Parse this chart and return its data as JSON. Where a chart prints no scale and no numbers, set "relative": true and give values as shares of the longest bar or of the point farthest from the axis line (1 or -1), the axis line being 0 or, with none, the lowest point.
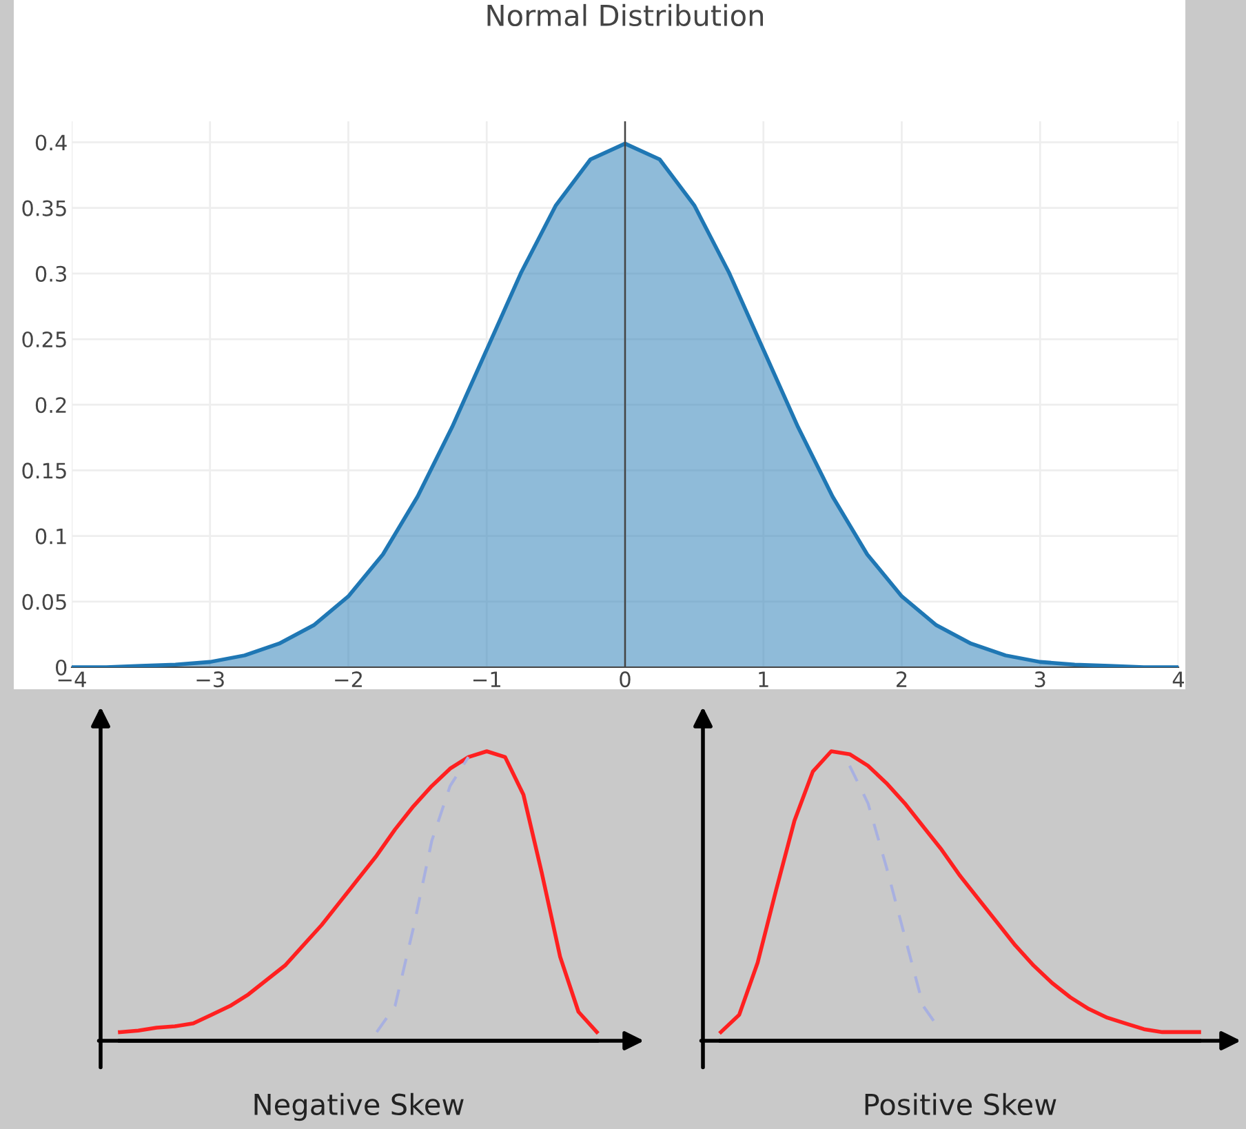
{
  "chart_data": [
    {
      "type": "area",
      "title": "Normal Distribution",
      "grid": true,
      "x": [
        -4,
        -3.75,
        -3.5,
        -3.25,
        -3,
        -2.75,
        -2.5,
        -2.25,
        -2,
        -1.75,
        -1.5,
        -1.25,
        -1,
        -0.75,
        -0.5,
        -0.25,
        0,
        0.25,
        0.5,
        0.75,
        1,
        1.25,
        1.5,
        1.75,
        2,
        2.25,
        2.5,
        2.75,
        3,
        3.25,
        3.5,
        3.75,
        4
      ],
      "series": [
        {
          "color": "#1f77b4",
          "values": [
            0.0,
            0.0,
            0.001,
            0.002,
            0.004,
            0.009,
            0.018,
            0.032,
            0.054,
            0.086,
            0.13,
            0.183,
            0.242,
            0.301,
            0.352,
            0.387,
            0.399,
            0.387,
            0.352,
            0.301,
            0.242,
            0.183,
            0.13,
            0.086,
            0.054,
            0.032,
            0.018,
            0.009,
            0.004,
            0.002,
            0.001,
            0.0,
            0.0
          ]
        }
      ],
      "xlim": [
        -4,
        4
      ],
      "ylim": [
        0,
        0.416
      ],
      "xticks": [
        {
          "value": -4,
          "label": "−4"
        },
        {
          "value": -3,
          "label": "−3"
        },
        {
          "value": -2,
          "label": "−2"
        },
        {
          "value": -1,
          "label": "−1"
        },
        0,
        1,
        2,
        3,
        4
      ],
      "yticks": [
        0,
        0.05,
        0.1,
        0.15,
        0.2,
        0.25,
        0.3,
        0.35,
        0.4
      ],
      "ref_lines": [
        {
          "axis": "x",
          "value": 0,
          "color": "#444444"
        }
      ]
    },
    {
      "type": "line",
      "xlabel": "Negative Skew",
      "relative": true,
      "categories": [
        null,
        null,
        null,
        null,
        null,
        null,
        null,
        null,
        null,
        null,
        null,
        null,
        null,
        null,
        null,
        null,
        null,
        null,
        null,
        null,
        null,
        null,
        null,
        null,
        null,
        null,
        null
      ],
      "series": [
        {
          "color": "#ff2020",
          "values": [
            0.03,
            0.035,
            0.045,
            0.05,
            0.06,
            0.09,
            0.12,
            0.16,
            0.21,
            0.26,
            0.33,
            0.4,
            0.48,
            0.56,
            0.64,
            0.73,
            0.81,
            0.88,
            0.94,
            0.98,
            1.0,
            0.98,
            0.85,
            0.58,
            0.29,
            0.1,
            0.03
          ]
        },
        {
          "color": "#a8b0e0",
          "line_style": "dashed",
          "values": [
            null,
            null,
            null,
            null,
            null,
            null,
            null,
            null,
            null,
            null,
            null,
            null,
            null,
            null,
            0.03,
            0.12,
            0.39,
            0.69,
            0.88,
            0.98,
            null,
            null,
            null,
            null,
            null,
            null,
            null
          ]
        }
      ]
    },
    {
      "type": "line",
      "xlabel": "Positive Skew",
      "relative": true,
      "categories": [
        null,
        null,
        null,
        null,
        null,
        null,
        null,
        null,
        null,
        null,
        null,
        null,
        null,
        null,
        null,
        null,
        null,
        null,
        null,
        null,
        null,
        null,
        null,
        null,
        null,
        null,
        null
      ],
      "series": [
        {
          "color": "#ff2020",
          "values": [
            0.03,
            0.09,
            0.27,
            0.52,
            0.76,
            0.93,
            1.0,
            0.99,
            0.95,
            0.89,
            0.82,
            0.74,
            0.66,
            0.57,
            0.49,
            0.41,
            0.33,
            0.26,
            0.2,
            0.15,
            0.11,
            0.08,
            0.06,
            0.04,
            0.03,
            0.03,
            0.03
          ]
        },
        {
          "color": "#a8b0e0",
          "line_style": "dashed",
          "values": [
            null,
            null,
            null,
            null,
            null,
            null,
            null,
            0.95,
            0.82,
            0.6,
            0.36,
            0.12,
            0.03,
            null,
            null,
            null,
            null,
            null,
            null,
            null,
            null,
            null,
            null,
            null,
            null,
            null,
            null
          ]
        }
      ]
    }
  ]
}
